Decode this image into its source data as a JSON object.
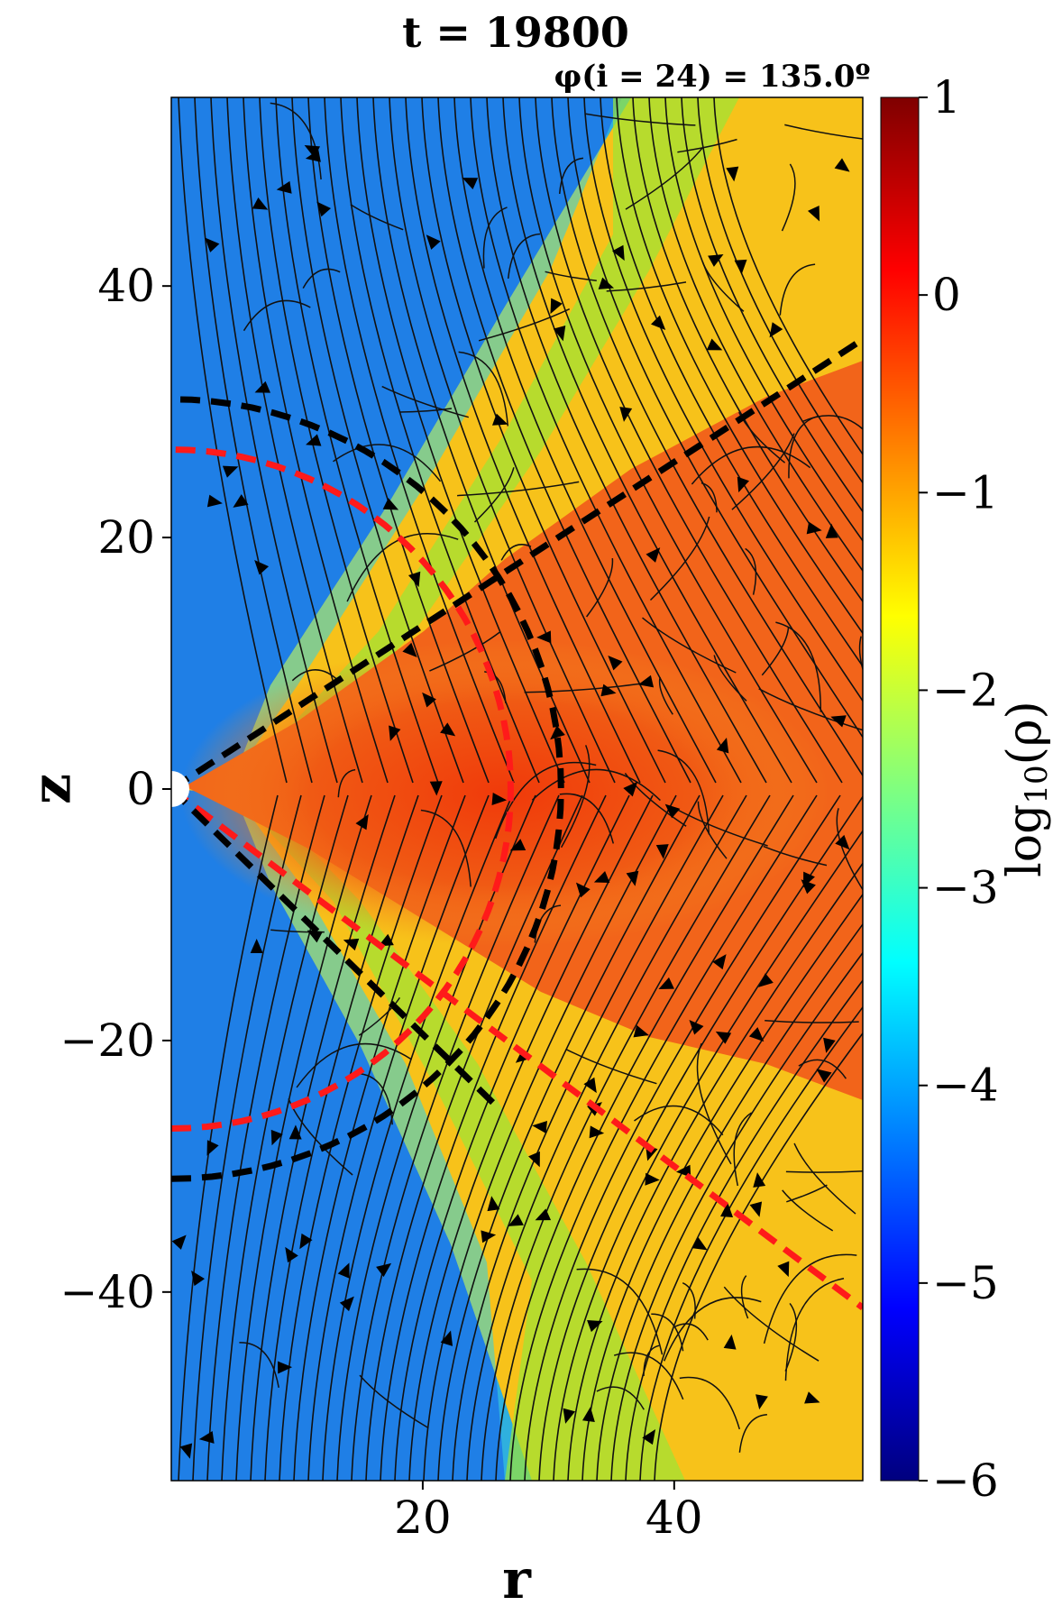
{
  "chart_data": {
    "type": "heatmap",
    "title": "t = 19800",
    "subtitle": "φ(i = 24) = 135.0º",
    "xlabel": "r",
    "ylabel": "z",
    "xlim": [
      0,
      55
    ],
    "ylim": [
      -55,
      55
    ],
    "x_ticks": [
      20,
      40
    ],
    "y_ticks": [
      -40,
      -20,
      0,
      20,
      40
    ],
    "x_tick_labels": [
      "20",
      "40"
    ],
    "y_tick_labels": [
      "−40",
      "−20",
      "0",
      "20",
      "40"
    ],
    "colorbar": {
      "label": "log10(ρ)",
      "label_base": "log",
      "label_sub": "10",
      "label_arg": "(ρ)",
      "range": [
        -6,
        1
      ],
      "ticks": [
        1,
        0,
        -1,
        -2,
        -3,
        -4,
        -5,
        -6
      ],
      "tick_labels": [
        "1",
        "0",
        "−1",
        "−2",
        "−3",
        "−4",
        "−5",
        "−6"
      ],
      "colormap": "jet"
    },
    "overlays": {
      "streamlines": "black streamlines with arrowheads",
      "red_dashed_circle_radius": 27,
      "red_dashed_lines_slope": 0.75,
      "black_dashed_circle_radius": 31,
      "black_dashed_lines_slope": 0.65
    },
    "colors": {
      "red_dashed": "#ff1a1a",
      "black_dashed": "#000000",
      "streamline": "#111111"
    }
  }
}
